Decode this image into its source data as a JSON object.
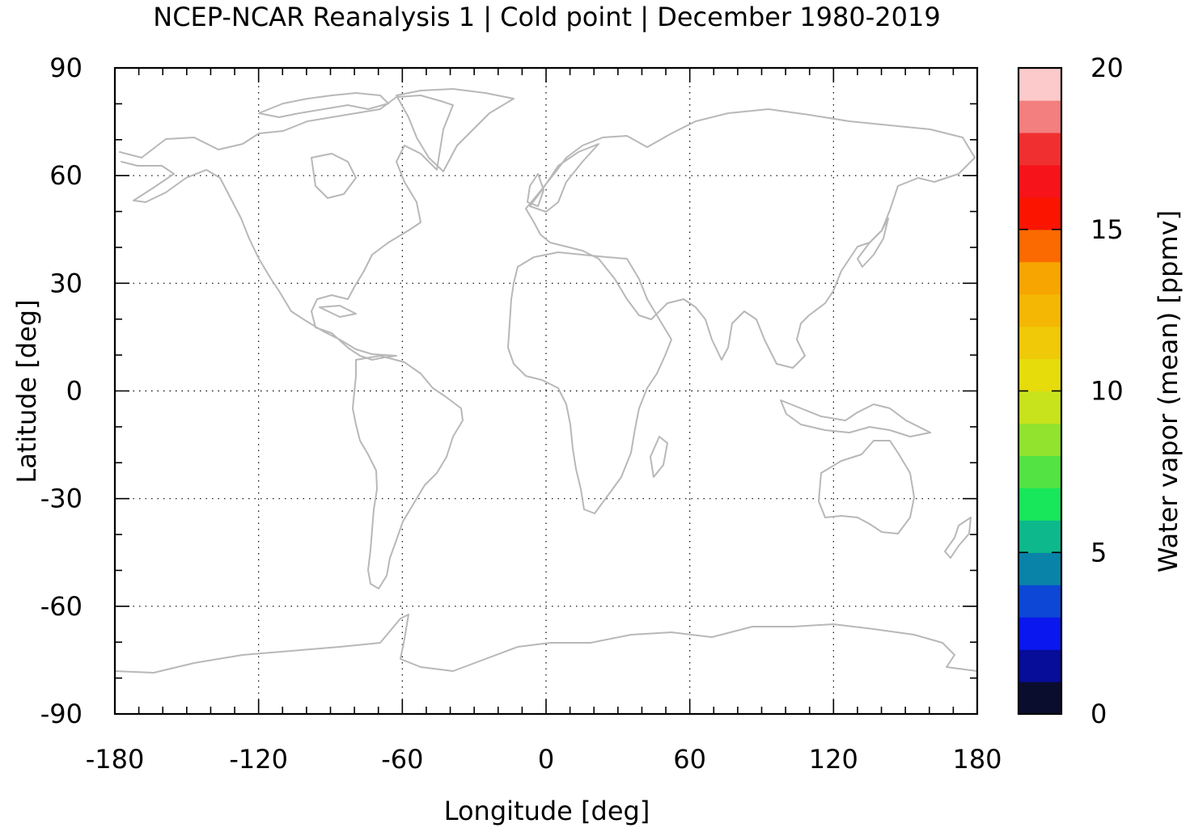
{
  "chart_data": {
    "type": "heatmap",
    "title": "NCEP-NCAR Reanalysis 1 | Cold point | December 1980-2019",
    "xlabel": "Longitude [deg]",
    "ylabel": "Latitude [deg]",
    "xlim": [
      -180,
      180
    ],
    "ylim": [
      -90,
      90
    ],
    "x_ticks": [
      "-180",
      "-120",
      "-60",
      "0",
      "60",
      "120",
      "180"
    ],
    "y_ticks": [
      "90",
      "60",
      "30",
      "0",
      "-30",
      "-60",
      "-90"
    ],
    "x_tick_values": [
      -180,
      -120,
      -60,
      0,
      60,
      120,
      180
    ],
    "y_tick_values": [
      90,
      60,
      30,
      0,
      -30,
      -60,
      -90
    ],
    "x_minor_step": 10,
    "y_minor_step": 10,
    "grid": true,
    "coastlines": true,
    "colorbar": {
      "label": "Water vapor (mean) [ppmv]",
      "range": [
        0,
        20
      ],
      "ticks": [
        "0",
        "5",
        "10",
        "15",
        "20"
      ],
      "tick_values": [
        0,
        5,
        10,
        15,
        20
      ],
      "colors": [
        "#0a0d2e",
        "#070c99",
        "#0a17ee",
        "#0c47d5",
        "#0a83a8",
        "#0db98c",
        "#18e65b",
        "#53e343",
        "#91e32e",
        "#c8e31c",
        "#e6dc0c",
        "#f0c908",
        "#f4b704",
        "#f7a500",
        "#fb6a00",
        "#fb1500",
        "#f7131a",
        "#f03030",
        "#f37f7f",
        "#fccaca"
      ]
    }
  }
}
